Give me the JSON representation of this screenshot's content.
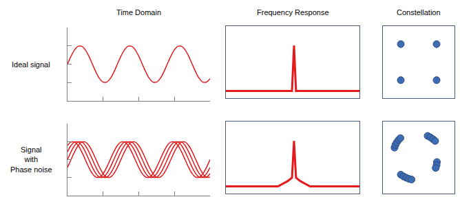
{
  "columns": [
    "Time Domain",
    "Frequency Response",
    "Constellation"
  ],
  "rows": [
    "Ideal signal",
    "Signal\nwith\nPhase noise"
  ],
  "chart_data": [
    {
      "type": "line",
      "xlim": [
        0,
        4
      ],
      "ylim": [
        -2,
        2
      ],
      "xticks": [
        1,
        2,
        3
      ],
      "yticks": [
        -1,
        0,
        1
      ],
      "tick_labels": false,
      "grid": false,
      "x": [
        0,
        0.1,
        0.2,
        0.3,
        0.4,
        0.5,
        0.6,
        0.7,
        0.8,
        0.9,
        1.0,
        1.1,
        1.2,
        1.3,
        1.4,
        1.5,
        1.6,
        1.7,
        1.8,
        1.9,
        2.0,
        2.1,
        2.2,
        2.3,
        2.4,
        2.5,
        2.6,
        2.7,
        2.8,
        2.9,
        3.0,
        3.1,
        3.2,
        3.3,
        3.4,
        3.5,
        3.6,
        3.7,
        3.8,
        3.9,
        4.0
      ],
      "series": [
        {
          "color": "#e41a1c",
          "values": [
            0,
            0.434,
            0.782,
            0.975,
            0.975,
            0.782,
            0.434,
            0,
            -0.434,
            -0.782,
            -0.975,
            -0.975,
            -0.782,
            -0.434,
            0,
            0.434,
            0.782,
            0.975,
            0.975,
            0.782,
            0.434,
            0,
            -0.434,
            -0.782,
            -0.975,
            -0.975,
            -0.782,
            -0.434,
            0,
            0.434,
            0.782,
            0.975,
            0.975,
            0.782,
            0.434,
            0,
            -0.434,
            -0.782,
            -0.975,
            -0.975,
            -0.782
          ]
        }
      ]
    },
    {
      "type": "line",
      "xlim": [
        0,
        10
      ],
      "ylim": [
        0,
        10
      ],
      "tick_labels": false,
      "grid": false,
      "color": "#e41a1c",
      "x": [
        0,
        4.95,
        5.1,
        5.25,
        10
      ],
      "values": [
        1,
        1,
        7.3,
        1,
        1
      ]
    },
    {
      "type": "scatter",
      "xlim": [
        -2,
        2
      ],
      "ylim": [
        -2,
        2
      ],
      "tick_labels": false,
      "grid": false,
      "color": "#3f6db3",
      "marker": "circle",
      "x": [
        -1,
        1,
        -1,
        1
      ],
      "values": [
        1,
        1,
        -1,
        -1
      ]
    },
    {
      "type": "line",
      "xlim": [
        0,
        4
      ],
      "ylim": [
        -2,
        2
      ],
      "xticks": [
        1,
        2,
        3
      ],
      "yticks": [
        -1,
        0,
        1
      ],
      "tick_labels": false,
      "grid": false,
      "x": [
        0,
        0.1,
        0.2,
        0.3,
        0.4,
        0.5,
        0.6,
        0.7,
        0.8,
        0.9,
        1.0,
        1.1,
        1.2,
        1.3,
        1.4,
        1.5,
        1.6,
        1.7,
        1.8,
        1.9,
        2.0,
        2.1,
        2.2,
        2.3,
        2.4,
        2.5,
        2.6,
        2.7,
        2.8,
        2.9,
        3.0,
        3.1,
        3.2,
        3.3,
        3.4,
        3.5,
        3.6,
        3.7,
        3.8,
        3.9,
        4.0
      ],
      "series": [
        {
          "color": "#e41a1c",
          "values": [
            -0.434,
            0,
            0.434,
            0.782,
            0.975,
            0.975,
            0.782,
            0.434,
            0,
            -0.434,
            -0.782,
            -0.975,
            -0.975,
            -0.782,
            -0.434,
            0,
            0.434,
            0.782,
            0.975,
            0.975,
            0.782,
            0.434,
            0,
            -0.434,
            -0.782,
            -0.975,
            -0.975,
            -0.782,
            -0.434,
            0,
            0.434,
            0.782,
            0.975,
            0.975,
            0.782,
            0.434,
            0,
            -0.434,
            -0.782,
            -0.975,
            -0.975
          ]
        },
        {
          "color": "#e41a1c",
          "values": [
            0,
            0.434,
            0.782,
            0.975,
            0.975,
            0.782,
            0.434,
            0,
            -0.434,
            -0.782,
            -0.975,
            -0.975,
            -0.782,
            -0.434,
            0,
            0.434,
            0.782,
            0.975,
            0.975,
            0.782,
            0.434,
            0,
            -0.434,
            -0.782,
            -0.975,
            -0.975,
            -0.782,
            -0.434,
            0,
            0.434,
            0.782,
            0.975,
            0.975,
            0.782,
            0.434,
            0,
            -0.434,
            -0.782,
            -0.975,
            -0.975,
            -0.782
          ]
        },
        {
          "color": "#e41a1c",
          "values": [
            0.434,
            0.782,
            0.975,
            0.975,
            0.782,
            0.434,
            0,
            -0.434,
            -0.782,
            -0.975,
            -0.975,
            -0.782,
            -0.434,
            0,
            0.434,
            0.782,
            0.975,
            0.975,
            0.782,
            0.434,
            0,
            -0.434,
            -0.782,
            -0.975,
            -0.975,
            -0.782,
            -0.434,
            0,
            0.434,
            0.782,
            0.975,
            0.975,
            0.782,
            0.434,
            0,
            -0.434,
            -0.782,
            -0.975,
            -0.975,
            -0.782,
            -0.434
          ]
        },
        {
          "color": "#e41a1c",
          "values": [
            0.782,
            0.975,
            0.975,
            0.782,
            0.434,
            0,
            -0.434,
            -0.782,
            -0.975,
            -0.975,
            -0.782,
            -0.434,
            0,
            0.434,
            0.782,
            0.975,
            0.975,
            0.782,
            0.434,
            0,
            -0.434,
            -0.782,
            -0.975,
            -0.975,
            -0.782,
            -0.434,
            0,
            0.434,
            0.782,
            0.975,
            0.975,
            0.782,
            0.434,
            0,
            -0.434,
            -0.782,
            -0.975,
            -0.975,
            -0.782,
            -0.434,
            0
          ]
        }
      ]
    },
    {
      "type": "line",
      "xlim": [
        0,
        10
      ],
      "ylim": [
        0,
        10
      ],
      "tick_labels": false,
      "grid": false,
      "color": "#e41a1c",
      "x": [
        0,
        3.9,
        4.6,
        4.95,
        5.1,
        5.25,
        5.6,
        6.3,
        10
      ],
      "values": [
        1,
        1,
        1.7,
        2.2,
        7.3,
        2.2,
        1.7,
        1,
        1
      ]
    },
    {
      "type": "scatter",
      "xlim": [
        -2,
        2
      ],
      "ylim": [
        -2,
        2
      ],
      "tick_labels": false,
      "grid": false,
      "color": "#3f6db3",
      "marker": "circle",
      "x": [
        -1.35,
        -1.3,
        -1.22,
        -1.12,
        -1.02,
        0.5,
        0.65,
        0.8,
        0.92,
        1.02,
        1.0,
        0.95,
        -1.0,
        -0.85,
        -0.7,
        -0.55,
        -0.4
      ],
      "values": [
        0.55,
        0.7,
        0.85,
        0.98,
        1.08,
        1.2,
        1.12,
        1.02,
        0.92,
        -0.25,
        -0.42,
        -0.58,
        -0.95,
        -1.05,
        -1.12,
        -1.18,
        -1.22
      ]
    }
  ]
}
